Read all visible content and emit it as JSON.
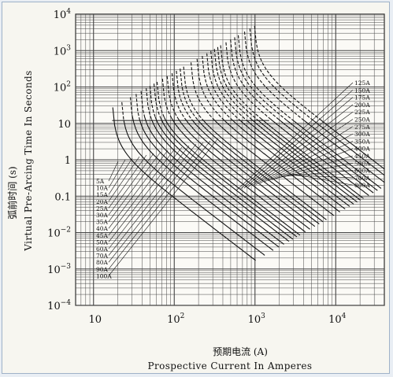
{
  "chart_data": {
    "type": "line",
    "scale": {
      "x": "log",
      "y": "log"
    },
    "xlim": [
      6,
      40000
    ],
    "ylim": [
      0.0001,
      10000
    ],
    "x_ticks": [
      {
        "base": "10",
        "exp": ""
      },
      {
        "base": "10",
        "exp": "2"
      },
      {
        "base": "10",
        "exp": "3"
      },
      {
        "base": "10",
        "exp": "4"
      }
    ],
    "y_ticks": [
      {
        "base": "10",
        "exp": "4"
      },
      {
        "base": "10",
        "exp": "3"
      },
      {
        "base": "10",
        "exp": "2"
      },
      {
        "base": "10",
        "exp": ""
      },
      {
        "base": "1",
        "exp": ""
      },
      {
        "base": "0.1",
        "exp": ""
      },
      {
        "base": "10",
        "exp": "−2"
      },
      {
        "base": "10",
        "exp": "−3"
      },
      {
        "base": "10",
        "exp": "−4"
      }
    ],
    "xlabel_cn": "预期电流 (A)",
    "xlabel_en": "Prospective Current In Amperes",
    "ylabel_cn": "弧前时间 (s)",
    "ylabel_en": "Virtual Pre-Arcing Time In Seconds",
    "grid": true,
    "ratings_left_group": [
      "5A",
      "10A",
      "15A",
      "20A",
      "25A",
      "30A",
      "35A",
      "40A",
      "45A",
      "50A",
      "60A",
      "70A",
      "80A",
      "90A",
      "100A"
    ],
    "ratings_right_group": [
      "125A",
      "150A",
      "175A",
      "200A",
      "225A",
      "250A",
      "275A",
      "300A",
      "350A",
      "400A",
      "450A",
      "500A",
      "600A",
      "700A",
      "800A"
    ],
    "series_min_melting_current_A": [
      17,
      22,
      28,
      33,
      38,
      44,
      49,
      55,
      60,
      70,
      80,
      92,
      104,
      116,
      128,
      158,
      188,
      218,
      248,
      278,
      308,
      338,
      368,
      428,
      488,
      548,
      608,
      728,
      848,
      968
    ]
  }
}
